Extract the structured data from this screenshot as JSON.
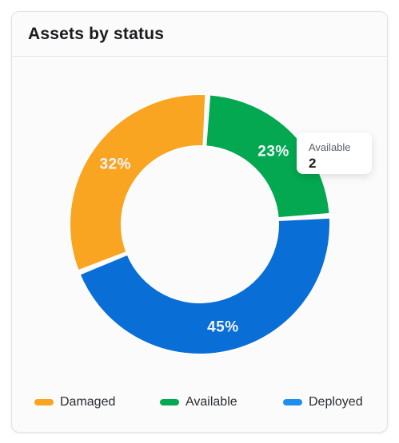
{
  "card": {
    "title": "Assets by status"
  },
  "chart_data": {
    "type": "pie",
    "donut": true,
    "categories": [
      "Damaged",
      "Available",
      "Deployed"
    ],
    "values": [
      32,
      23,
      45
    ],
    "labels": [
      "32%",
      "23%",
      "45%"
    ],
    "colors": [
      "#F9A521",
      "#03A850",
      "#0A6ED7"
    ],
    "legend_colors": [
      "#F9A521",
      "#03A850",
      "#1E8FF0"
    ],
    "legend_placement": "bottom"
  },
  "tooltip": {
    "label": "Available",
    "value": "2"
  }
}
